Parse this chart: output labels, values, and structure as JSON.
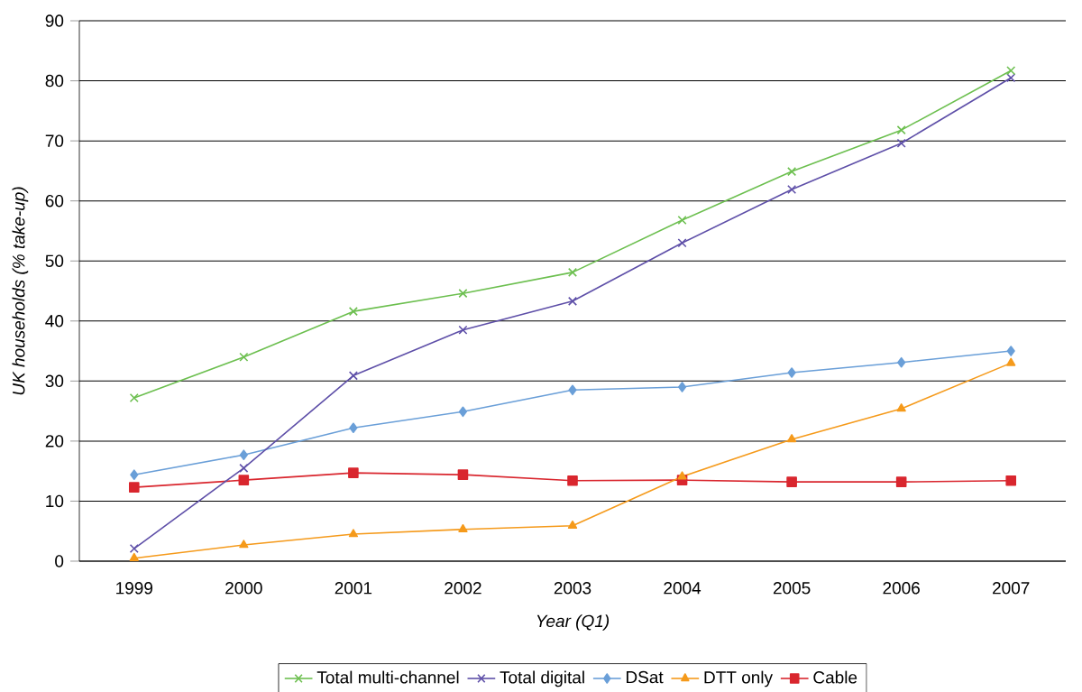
{
  "chart_data": {
    "type": "line",
    "xlabel": "Year (Q1)",
    "ylabel": "UK households (% take-up)",
    "categories": [
      "1999",
      "2000",
      "2001",
      "2002",
      "2003",
      "2004",
      "2005",
      "2006",
      "2007"
    ],
    "ylim": [
      0,
      90
    ],
    "yticks": [
      0,
      10,
      20,
      30,
      40,
      50,
      60,
      70,
      80,
      90
    ],
    "grid": "y",
    "legend": "bottom",
    "series": [
      {
        "name": "Total multi-channel",
        "color": "#6cbf4f",
        "marker": "cross",
        "values": [
          27.2,
          34.0,
          41.6,
          44.6,
          48.1,
          56.8,
          64.9,
          71.8,
          81.7
        ]
      },
      {
        "name": "Total digital",
        "color": "#5e4fa8",
        "marker": "cross",
        "values": [
          2.1,
          15.5,
          30.9,
          38.5,
          43.3,
          53.0,
          61.9,
          69.6,
          80.5
        ]
      },
      {
        "name": "DSat",
        "color": "#6a9fd8",
        "marker": "diamond",
        "values": [
          14.4,
          17.7,
          22.2,
          24.9,
          28.5,
          29.0,
          31.4,
          33.1,
          35.0
        ]
      },
      {
        "name": "DTT only",
        "color": "#f59a1b",
        "marker": "triangle",
        "values": [
          0.5,
          2.7,
          4.5,
          5.3,
          5.9,
          14.1,
          20.3,
          25.4,
          33.0
        ]
      },
      {
        "name": "Cable",
        "color": "#d9262e",
        "marker": "square",
        "values": [
          12.3,
          13.5,
          14.7,
          14.4,
          13.4,
          13.5,
          13.2,
          13.2,
          13.4
        ]
      }
    ]
  }
}
